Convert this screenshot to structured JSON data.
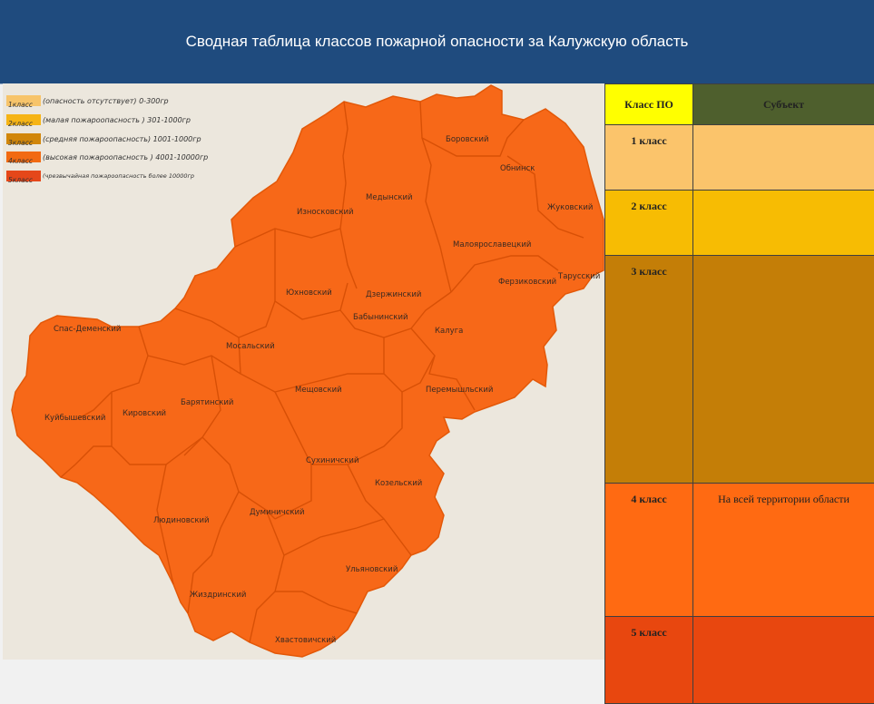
{
  "title": "Сводная таблица классов пожарной опасности за Калужскую область",
  "legend": [
    {
      "code": "1класс",
      "text": "(опасность отсутствует) 0-300гр",
      "color": "#f7c46a"
    },
    {
      "code": "2класс",
      "text": "(малая пожароопасность ) 301-1000гр",
      "color": "#f6b415"
    },
    {
      "code": "3класс",
      "text": "(средняя пожароопасность) 1001-1000гр",
      "color": "#d1860a"
    },
    {
      "code": "4класс",
      "text": "(высокая пожароопасность ) 4001-10000гр",
      "color": "#f26a12"
    },
    {
      "code": "5класс",
      "text": "(чрезвычайная пожароопасность более 10000гр",
      "color": "#e5471a"
    }
  ],
  "districts": [
    "Боровский",
    "Обнинск",
    "Медынский",
    "Износковский",
    "Жуковский",
    "Малоярославецкий",
    "Тарусский",
    "Ферзиковский",
    "Юхновский",
    "Дзержинский",
    "Бабынинский",
    "Калуга",
    "Спас-Деменский",
    "Мосальский",
    "Мещовский",
    "Перемышльский",
    "Барятинский",
    "Кировский",
    "Куйбышевский",
    "Сухиничский",
    "Козельский",
    "Людиновский",
    "Думиничский",
    "Ульяновский",
    "Жиздринский",
    "Хвастовичский"
  ],
  "table": {
    "headers": {
      "class": "Класс ПО",
      "subject": "Субъект"
    },
    "rows": [
      {
        "class": "1 класс",
        "subject": "",
        "color": "#fbc46b"
      },
      {
        "class": "2 класс",
        "subject": "",
        "color": "#f7bc03"
      },
      {
        "class": "3 класс",
        "subject": "",
        "color": "#c47e07"
      },
      {
        "class": "4 класс",
        "subject": "На всей территории области",
        "color": "#ff6a12"
      },
      {
        "class": "5 класс",
        "subject": "",
        "color": "#e8470f"
      }
    ],
    "header_colors": {
      "class": "#ffff00",
      "subject": "#4e5f2d"
    }
  },
  "map_fill_color": "#f76818"
}
